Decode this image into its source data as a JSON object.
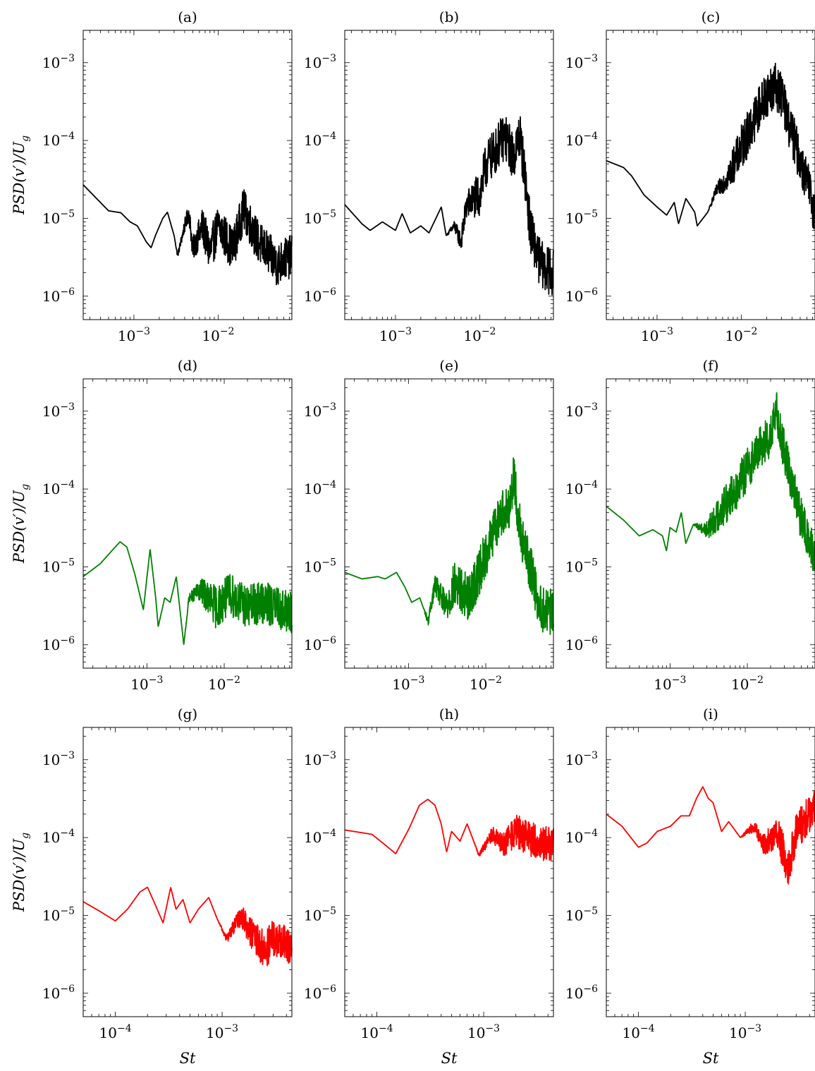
{
  "chart_data": [
    {
      "panel": "(a)",
      "type": "line",
      "series": [
        {
          "color": "#000000",
          "x_range": [
            0.00025,
            0.075
          ],
          "y_points": [
            [
              0.00025,
              2.7e-05
            ],
            [
              0.0004,
              1.6e-05
            ],
            [
              0.0005,
              1.25e-05
            ],
            [
              0.0007,
              1.18e-05
            ],
            [
              0.0009,
              9e-06
            ],
            [
              0.0011,
              8e-06
            ],
            [
              0.0014,
              5e-06
            ],
            [
              0.0016,
              4.2e-06
            ],
            [
              0.0018,
              6e-06
            ],
            [
              0.0022,
              1e-05
            ],
            [
              0.0025,
              1.2e-05
            ],
            [
              0.003,
              6e-06
            ],
            [
              0.0033,
              3.3e-06
            ],
            [
              0.004,
              8e-06
            ],
            [
              0.0045,
              1.2e-05
            ],
            [
              0.005,
              4e-06
            ],
            [
              0.0065,
              8e-06
            ],
            [
              0.008,
              3.6e-06
            ],
            [
              0.01,
              8e-06
            ],
            [
              0.015,
              4e-06
            ],
            [
              0.02,
              1.3e-05
            ],
            [
              0.03,
              5e-06
            ],
            [
              0.04,
              3.5e-06
            ],
            [
              0.05,
              2.5e-06
            ],
            [
              0.06,
              3e-06
            ],
            [
              0.075,
              3.2e-06
            ]
          ],
          "noise_from": 0.003,
          "noise_amp": 0.55
        }
      ],
      "xlim": [
        0.00025,
        0.075
      ],
      "ylim": [
        5e-07,
        0.0026
      ]
    },
    {
      "panel": "(b)",
      "type": "line",
      "series": [
        {
          "color": "#000000",
          "x_range": [
            0.00025,
            0.075
          ],
          "y_points": [
            [
              0.00025,
              1.5e-05
            ],
            [
              0.0004,
              8.5e-06
            ],
            [
              0.0005,
              7e-06
            ],
            [
              0.0007,
              9e-06
            ],
            [
              0.001,
              7e-06
            ],
            [
              0.0012,
              1.15e-05
            ],
            [
              0.0015,
              6.5e-06
            ],
            [
              0.002,
              8e-06
            ],
            [
              0.0025,
              6.5e-06
            ],
            [
              0.0035,
              1.4e-05
            ],
            [
              0.004,
              6e-06
            ],
            [
              0.005,
              8e-06
            ],
            [
              0.006,
              5e-06
            ],
            [
              0.007,
              1.5e-05
            ],
            [
              0.01,
              2e-05
            ],
            [
              0.012,
              5e-05
            ],
            [
              0.015,
              7e-05
            ],
            [
              0.018,
              0.0001
            ],
            [
              0.02,
              0.00011
            ],
            [
              0.022,
              9e-05
            ],
            [
              0.025,
              6e-05
            ],
            [
              0.03,
              0.00012
            ],
            [
              0.035,
              3e-05
            ],
            [
              0.04,
              7e-06
            ],
            [
              0.05,
              3e-06
            ],
            [
              0.06,
              2.2e-06
            ],
            [
              0.075,
              2e-06
            ]
          ],
          "noise_from": 0.004,
          "noise_amp": 0.6
        }
      ],
      "xlim": [
        0.00025,
        0.075
      ],
      "ylim": [
        5e-07,
        0.0026
      ]
    },
    {
      "panel": "(c)",
      "type": "line",
      "series": [
        {
          "color": "#000000",
          "x_range": [
            0.00025,
            0.075
          ],
          "y_points": [
            [
              0.00025,
              5.5e-05
            ],
            [
              0.0004,
              4.5e-05
            ],
            [
              0.0005,
              3.5e-05
            ],
            [
              0.0007,
              2e-05
            ],
            [
              0.001,
              1.4e-05
            ],
            [
              0.0013,
              1.1e-05
            ],
            [
              0.0016,
              1.6e-05
            ],
            [
              0.0018,
              8.5e-06
            ],
            [
              0.0022,
              1.8e-05
            ],
            [
              0.0028,
              1.2e-05
            ],
            [
              0.003,
              8e-06
            ],
            [
              0.004,
              1.2e-05
            ],
            [
              0.005,
              2.2e-05
            ],
            [
              0.007,
              3.5e-05
            ],
            [
              0.01,
              8e-05
            ],
            [
              0.013,
              0.00015
            ],
            [
              0.016,
              0.00025
            ],
            [
              0.02,
              0.0004
            ],
            [
              0.025,
              0.0005
            ],
            [
              0.03,
              0.0004
            ],
            [
              0.035,
              0.0002
            ],
            [
              0.045,
              8e-05
            ],
            [
              0.06,
              3e-05
            ],
            [
              0.075,
              1.2e-05
            ]
          ],
          "noise_from": 0.004,
          "noise_amp": 0.6
        }
      ],
      "xlim": [
        0.00025,
        0.075
      ],
      "ylim": [
        5e-07,
        0.0026
      ]
    },
    {
      "panel": "(d)",
      "type": "line",
      "series": [
        {
          "color": "#008000",
          "x_range": [
            0.00015,
            0.075
          ],
          "y_points": [
            [
              0.00015,
              7.5e-06
            ],
            [
              0.00025,
              1.1e-05
            ],
            [
              0.00035,
              1.6e-05
            ],
            [
              0.00045,
              2.1e-05
            ],
            [
              0.00055,
              1.8e-05
            ],
            [
              0.0007,
              8e-06
            ],
            [
              0.0009,
              2.8e-06
            ],
            [
              0.0011,
              1.7e-05
            ],
            [
              0.0013,
              4e-06
            ],
            [
              0.0014,
              1.7e-06
            ],
            [
              0.0017,
              4e-06
            ],
            [
              0.002,
              3.5e-06
            ],
            [
              0.0024,
              7.5e-06
            ],
            [
              0.003,
              1e-06
            ],
            [
              0.0035,
              4e-06
            ],
            [
              0.005,
              5e-06
            ],
            [
              0.008,
              3e-06
            ],
            [
              0.012,
              4.5e-06
            ],
            [
              0.02,
              3e-06
            ],
            [
              0.03,
              3.5e-06
            ],
            [
              0.05,
              3e-06
            ],
            [
              0.075,
              2.5e-06
            ]
          ],
          "noise_from": 0.003,
          "noise_amp": 0.55
        }
      ],
      "xlim": [
        0.00015,
        0.075
      ],
      "ylim": [
        5e-07,
        0.0026
      ]
    },
    {
      "panel": "(e)",
      "type": "line",
      "series": [
        {
          "color": "#008000",
          "x_range": [
            0.00015,
            0.075
          ],
          "y_points": [
            [
              0.00015,
              8.5e-06
            ],
            [
              0.00025,
              7e-06
            ],
            [
              0.0004,
              7.5e-06
            ],
            [
              0.0005,
              7e-06
            ],
            [
              0.0007,
              8.5e-06
            ],
            [
              0.0009,
              5.5e-06
            ],
            [
              0.0011,
              3.5e-06
            ],
            [
              0.0014,
              4e-06
            ],
            [
              0.0018,
              2e-06
            ],
            [
              0.0022,
              6e-06
            ],
            [
              0.003,
              3e-06
            ],
            [
              0.004,
              6e-06
            ],
            [
              0.006,
              4e-06
            ],
            [
              0.008,
              8e-06
            ],
            [
              0.01,
              1.5e-05
            ],
            [
              0.013,
              3e-05
            ],
            [
              0.016,
              5e-05
            ],
            [
              0.02,
              6e-05
            ],
            [
              0.023,
              0.00015
            ],
            [
              0.026,
              5e-05
            ],
            [
              0.03,
              2e-05
            ],
            [
              0.04,
              8e-06
            ],
            [
              0.05,
              3e-06
            ],
            [
              0.075,
              2.5e-06
            ]
          ],
          "noise_from": 0.0015,
          "noise_amp": 0.6
        }
      ],
      "xlim": [
        0.00015,
        0.075
      ],
      "ylim": [
        5e-07,
        0.0026
      ]
    },
    {
      "panel": "(f)",
      "type": "line",
      "series": [
        {
          "color": "#008000",
          "x_range": [
            0.00015,
            0.075
          ],
          "y_points": [
            [
              0.00015,
              6e-05
            ],
            [
              0.00025,
              4e-05
            ],
            [
              0.0004,
              2.5e-05
            ],
            [
              0.0006,
              3e-05
            ],
            [
              0.0008,
              2.5e-05
            ],
            [
              0.0009,
              1.6e-05
            ],
            [
              0.001,
              3.2e-05
            ],
            [
              0.0012,
              2.8e-05
            ],
            [
              0.0014,
              5e-05
            ],
            [
              0.0016,
              2e-05
            ],
            [
              0.002,
              3.5e-05
            ],
            [
              0.003,
              3e-05
            ],
            [
              0.005,
              6e-05
            ],
            [
              0.008,
              0.00012
            ],
            [
              0.012,
              0.00025
            ],
            [
              0.016,
              0.0004
            ],
            [
              0.02,
              0.00045
            ],
            [
              0.024,
              0.001
            ],
            [
              0.03,
              0.0003
            ],
            [
              0.04,
              0.0001
            ],
            [
              0.05,
              4e-05
            ],
            [
              0.075,
              1.3e-05
            ]
          ],
          "noise_from": 0.002,
          "noise_amp": 0.55
        }
      ],
      "xlim": [
        0.00015,
        0.075
      ],
      "ylim": [
        5e-07,
        0.0026
      ]
    },
    {
      "panel": "(g)",
      "type": "line",
      "series": [
        {
          "color": "#ff0000",
          "x_range": [
            5e-05,
            0.0045
          ],
          "y_points": [
            [
              5e-05,
              1.5e-05
            ],
            [
              7e-05,
              1.15e-05
            ],
            [
              0.0001,
              8.5e-06
            ],
            [
              0.00013,
              1.2e-05
            ],
            [
              0.00017,
              2e-05
            ],
            [
              0.0002,
              2.3e-05
            ],
            [
              0.00023,
              1.5e-05
            ],
            [
              0.00028,
              8e-06
            ],
            [
              0.00033,
              2.3e-05
            ],
            [
              0.00037,
              1.2e-05
            ],
            [
              0.00043,
              1.6e-05
            ],
            [
              0.0005,
              8e-06
            ],
            [
              0.0006,
              1.2e-05
            ],
            [
              0.00075,
              1.7e-05
            ],
            [
              0.0009,
              9e-06
            ],
            [
              0.0011,
              5e-06
            ],
            [
              0.0015,
              1e-05
            ],
            [
              0.002,
              5e-06
            ],
            [
              0.0025,
              3.5e-06
            ],
            [
              0.003,
              5e-06
            ],
            [
              0.0045,
              4e-06
            ]
          ],
          "noise_from": 0.0009,
          "noise_amp": 0.5
        }
      ],
      "xlim": [
        5e-05,
        0.0045
      ],
      "ylim": [
        5e-07,
        0.0026
      ]
    },
    {
      "panel": "(h)",
      "type": "line",
      "series": [
        {
          "color": "#ff0000",
          "x_range": [
            5e-05,
            0.0045
          ],
          "y_points": [
            [
              5e-05,
              0.000125
            ],
            [
              9e-05,
              0.00011
            ],
            [
              0.00012,
              8e-05
            ],
            [
              0.00015,
              6.2e-05
            ],
            [
              0.0002,
              0.00013
            ],
            [
              0.00025,
              0.00026
            ],
            [
              0.0003,
              0.00031
            ],
            [
              0.00035,
              0.00026
            ],
            [
              0.0004,
              0.00015
            ],
            [
              0.00045,
              6.5e-05
            ],
            [
              0.0005,
              0.00012
            ],
            [
              0.0006,
              9e-05
            ],
            [
              0.0007,
              0.00015
            ],
            [
              0.0009,
              6e-05
            ],
            [
              0.0012,
              0.00011
            ],
            [
              0.0015,
              8e-05
            ],
            [
              0.002,
              0.00012
            ],
            [
              0.003,
              9e-05
            ],
            [
              0.0045,
              8e-05
            ]
          ],
          "noise_from": 0.0008,
          "noise_amp": 0.45
        }
      ],
      "xlim": [
        5e-05,
        0.0045
      ],
      "ylim": [
        5e-07,
        0.0026
      ]
    },
    {
      "panel": "(i)",
      "type": "line",
      "series": [
        {
          "color": "#ff0000",
          "x_range": [
            5e-05,
            0.0045
          ],
          "y_points": [
            [
              5e-05,
              0.0002
            ],
            [
              7e-05,
              0.00014
            ],
            [
              0.0001,
              7.5e-05
            ],
            [
              0.00012,
              8.5e-05
            ],
            [
              0.00015,
              0.00012
            ],
            [
              0.0002,
              0.00014
            ],
            [
              0.00025,
              0.00019
            ],
            [
              0.0003,
              0.00019
            ],
            [
              0.00035,
              0.00032
            ],
            [
              0.0004,
              0.00045
            ],
            [
              0.00045,
              0.00032
            ],
            [
              0.0005,
              0.00028
            ],
            [
              0.0006,
              0.00012
            ],
            [
              0.0007,
              0.00016
            ],
            [
              0.0009,
              0.0001
            ],
            [
              0.0012,
              0.00014
            ],
            [
              0.0015,
              8e-05
            ],
            [
              0.002,
              0.00012
            ],
            [
              0.0025,
              4e-05
            ],
            [
              0.003,
              0.00012
            ],
            [
              0.0045,
              0.00025
            ]
          ],
          "noise_from": 0.0009,
          "noise_amp": 0.5
        }
      ],
      "xlim": [
        5e-05,
        0.0045
      ],
      "ylim": [
        5e-07,
        0.0026
      ]
    }
  ],
  "panels": {
    "titles": [
      "(a)",
      "(b)",
      "(c)",
      "(d)",
      "(e)",
      "(f)",
      "(g)",
      "(h)",
      "(i)"
    ]
  },
  "axes": {
    "ylabel": "PSD(v′)/U",
    "ylabel_sub": "g",
    "xlabel": "St",
    "yticks": [
      {
        "base": "10",
        "exp": "−3",
        "value": 0.001
      },
      {
        "base": "10",
        "exp": "−4",
        "value": 0.0001
      },
      {
        "base": "10",
        "exp": "−5",
        "value": 1e-05
      },
      {
        "base": "10",
        "exp": "−6",
        "value": 1e-06
      }
    ],
    "xticks_top": [
      {
        "base": "10",
        "exp": "−3",
        "value": 0.001
      },
      {
        "base": "10",
        "exp": "−2",
        "value": 0.01
      }
    ],
    "xticks_bottom": [
      {
        "base": "10",
        "exp": "−4",
        "value": 0.0001
      },
      {
        "base": "10",
        "exp": "−3",
        "value": 0.001
      }
    ]
  }
}
